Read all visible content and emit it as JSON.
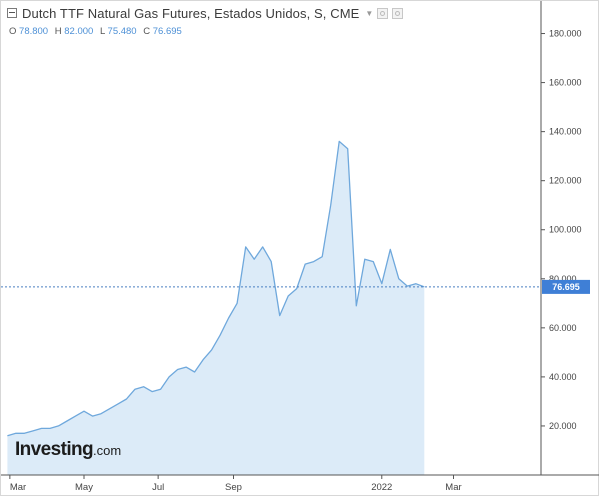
{
  "header": {
    "title": "Dutch TTF Natural Gas Futures, Estados Unidos, S, CME",
    "caret": "▼"
  },
  "ohlc": {
    "o_label": "O",
    "o_value": "78.800",
    "h_label": "H",
    "h_value": "82.000",
    "l_label": "L",
    "l_value": "75.480",
    "c_label": "C",
    "c_value": "76.695"
  },
  "logo": {
    "main": "Investing",
    "sub": ".com"
  },
  "colors": {
    "line": "#6fa8dc",
    "fill": "#dcebf8",
    "current_price_line": "#4a7fc1",
    "current_price_box": "#3f7fd6",
    "axis": "#555555",
    "grid": "#eeeeee"
  },
  "chart_data": {
    "type": "area",
    "title": "Dutch TTF Natural Gas Futures, Estados Unidos, S, CME",
    "xlabel": "",
    "ylabel": "",
    "ylim": [
      0,
      190
    ],
    "grid": false,
    "legend": "none",
    "y_ticks": [
      "20.000",
      "40.000",
      "60.000",
      "80.000",
      "100.000",
      "120.000",
      "140.000",
      "160.000",
      "180.000"
    ],
    "y_tick_values": [
      20,
      40,
      60,
      80,
      100,
      120,
      140,
      160,
      180
    ],
    "x_ticks": [
      "Mar",
      "May",
      "Jul",
      "Sep",
      "2022",
      "Mar"
    ],
    "x_tick_dates": [
      "2021-03-01",
      "2021-05-01",
      "2021-07-01",
      "2021-09-01",
      "2022-01-01",
      "2022-03-01"
    ],
    "x_range": [
      "2021-02-25",
      "2022-05-12"
    ],
    "current_price": 76.695,
    "current_price_label": "76.695",
    "series": [
      {
        "x": [
          "2021-02-27",
          "2021-03-06",
          "2021-03-13",
          "2021-03-20",
          "2021-03-27",
          "2021-04-03",
          "2021-04-10",
          "2021-04-17",
          "2021-04-24",
          "2021-05-01",
          "2021-05-08",
          "2021-05-15",
          "2021-05-22",
          "2021-05-29",
          "2021-06-05",
          "2021-06-12",
          "2021-06-19",
          "2021-06-26",
          "2021-07-03",
          "2021-07-10",
          "2021-07-17",
          "2021-07-24",
          "2021-07-31",
          "2021-08-07",
          "2021-08-14",
          "2021-08-21",
          "2021-08-28",
          "2021-09-04",
          "2021-09-11",
          "2021-09-18",
          "2021-09-25",
          "2021-10-02",
          "2021-10-09",
          "2021-10-16",
          "2021-10-23",
          "2021-10-30",
          "2021-11-06",
          "2021-11-13",
          "2021-11-20",
          "2021-11-27",
          "2021-12-04",
          "2021-12-11",
          "2021-12-18",
          "2021-12-25",
          "2022-01-01",
          "2022-01-08",
          "2022-01-15",
          "2022-01-22",
          "2022-01-29",
          "2022-02-05"
        ],
        "values": [
          16,
          17,
          17,
          18,
          19,
          19,
          20,
          22,
          24,
          26,
          24,
          25,
          27,
          29,
          31,
          35,
          36,
          34,
          35,
          40,
          43,
          44,
          42,
          47,
          51,
          57,
          64,
          70,
          93,
          88,
          93,
          87,
          65,
          73,
          76,
          86,
          87,
          89,
          110,
          136,
          133,
          69,
          88,
          87,
          78,
          92,
          80,
          77,
          78,
          76.7
        ]
      }
    ]
  }
}
